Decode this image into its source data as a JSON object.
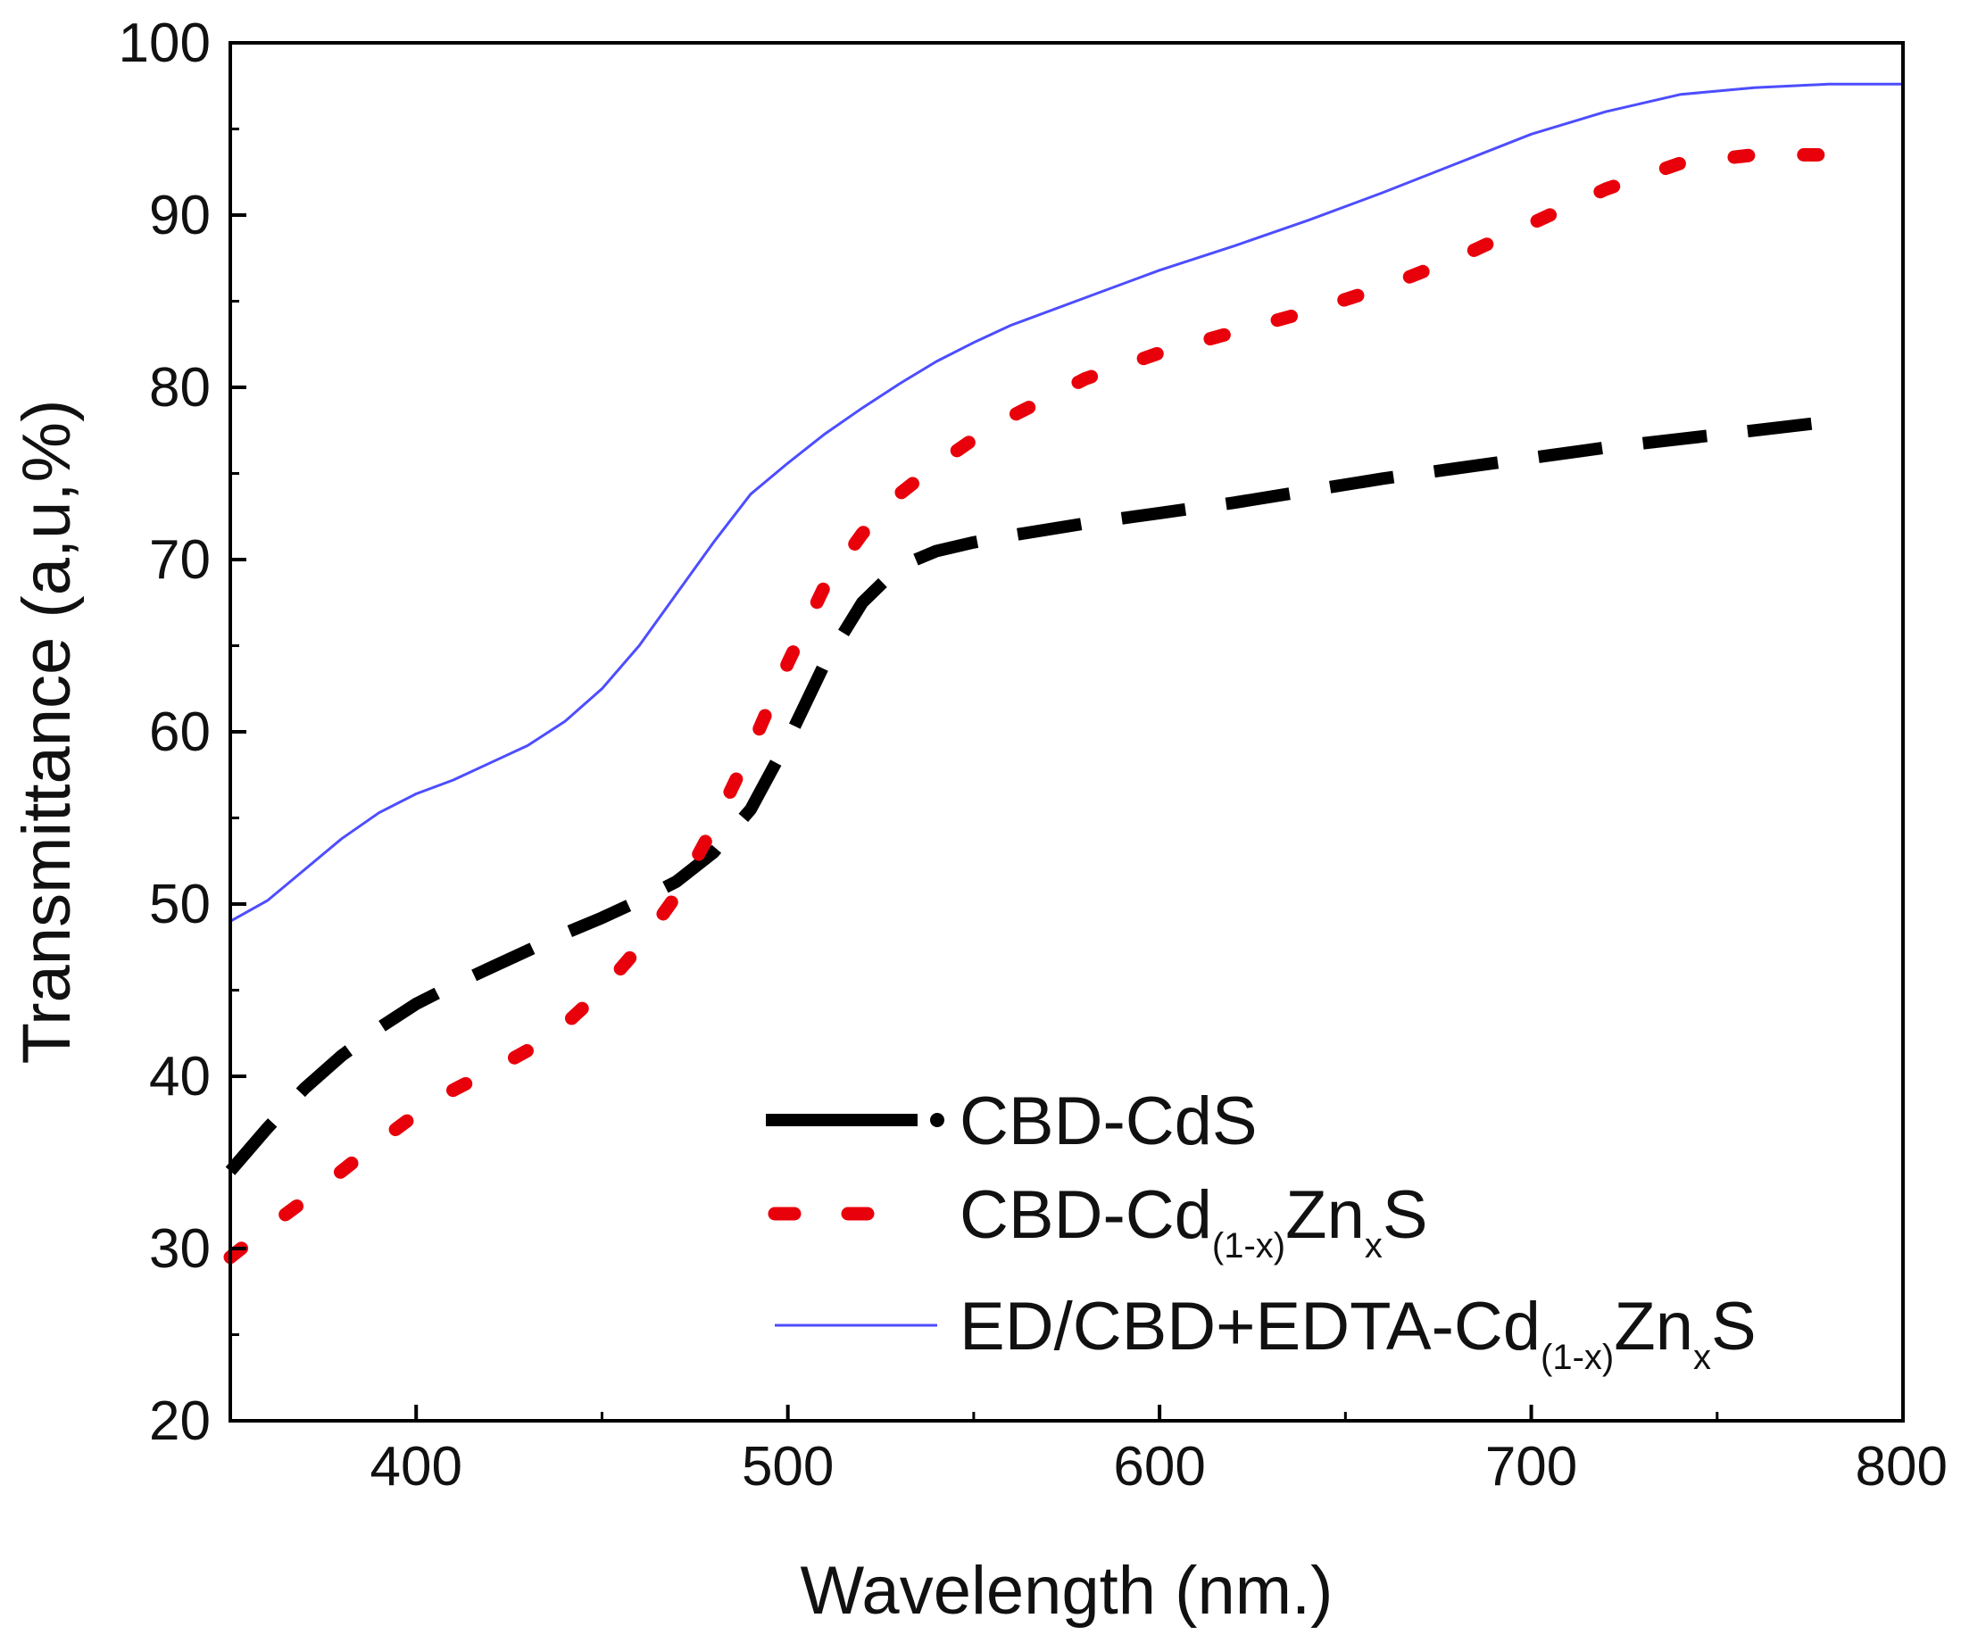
{
  "chart_data": {
    "type": "line",
    "title": "",
    "xlabel": "Wavelength (nm.)",
    "ylabel": "Transmittance (a,u,%)",
    "xlim": [
      350,
      800
    ],
    "ylim": [
      20,
      100
    ],
    "x_ticks": [
      400,
      500,
      600,
      700,
      800
    ],
    "x_tick_labels": [
      "400",
      "500",
      "600",
      "700",
      "800"
    ],
    "y_ticks": [
      20,
      30,
      40,
      50,
      60,
      70,
      80,
      90,
      100
    ],
    "y_tick_labels": [
      "20",
      "30",
      "40",
      "50",
      "60",
      "70",
      "80",
      "90",
      "100"
    ],
    "grid": false,
    "legend_position": "bottom-right",
    "series": [
      {
        "name": "CBD-CdS",
        "legend_parts": {
          "main": "CBD-CdS"
        },
        "color": "#000000",
        "style": "dash",
        "x": [
          350,
          360,
          370,
          380,
          390,
          400,
          410,
          420,
          430,
          440,
          450,
          460,
          470,
          480,
          490,
          500,
          510,
          520,
          530,
          540,
          550,
          560,
          580,
          600,
          620,
          640,
          660,
          680,
          700,
          720,
          740,
          760,
          780
        ],
        "y": [
          34.5,
          37.0,
          39.3,
          41.2,
          42.8,
          44.2,
          45.3,
          46.3,
          47.3,
          48.3,
          49.2,
          50.2,
          51.3,
          53.0,
          55.5,
          59.5,
          64.0,
          67.5,
          69.6,
          70.5,
          71.0,
          71.4,
          72.1,
          72.7,
          73.3,
          74.0,
          74.7,
          75.3,
          75.9,
          76.5,
          77.0,
          77.5,
          78.0
        ]
      },
      {
        "name": "CBD-Cd(1-x)ZnxS",
        "legend_parts": {
          "pre": "CBD-Cd",
          "sub1": "(1-x)",
          "mid": "Zn",
          "sub2": "x",
          "post": "S"
        },
        "color": "#e8000b",
        "style": "dot",
        "x": [
          350,
          360,
          370,
          380,
          390,
          400,
          410,
          420,
          430,
          440,
          450,
          460,
          470,
          480,
          490,
          500,
          510,
          520,
          530,
          540,
          550,
          560,
          580,
          600,
          620,
          640,
          660,
          680,
          700,
          720,
          740,
          760,
          780
        ],
        "y": [
          29.5,
          31.2,
          32.8,
          34.5,
          36.2,
          37.8,
          39.2,
          40.3,
          41.5,
          43.0,
          45.0,
          47.5,
          50.5,
          54.5,
          59.0,
          64.0,
          68.5,
          71.5,
          73.8,
          75.5,
          77.0,
          78.3,
          80.5,
          82.0,
          83.2,
          84.4,
          85.8,
          87.5,
          89.5,
          91.5,
          93.0,
          93.5,
          93.5
        ]
      },
      {
        "name": "ED/CBD+EDTA-Cd(1-x)ZnxS",
        "legend_parts": {
          "pre": "ED/CBD+EDTA-Cd",
          "sub1": "(1-x)",
          "mid": "Zn",
          "sub2": "x",
          "post": "S"
        },
        "color": "#4d4dff",
        "style": "solid",
        "x": [
          350,
          360,
          370,
          380,
          390,
          400,
          410,
          420,
          430,
          440,
          450,
          460,
          470,
          480,
          490,
          500,
          510,
          520,
          530,
          540,
          550,
          560,
          580,
          600,
          620,
          640,
          660,
          680,
          700,
          720,
          740,
          760,
          780,
          800
        ],
        "y": [
          49.0,
          50.2,
          52.0,
          53.8,
          55.3,
          56.4,
          57.2,
          58.2,
          59.2,
          60.6,
          62.5,
          65.0,
          68.0,
          71.0,
          73.8,
          75.6,
          77.3,
          78.8,
          80.2,
          81.5,
          82.6,
          83.6,
          85.2,
          86.8,
          88.2,
          89.7,
          91.3,
          93.0,
          94.7,
          96.0,
          97.0,
          97.4,
          97.6,
          97.6
        ]
      }
    ]
  }
}
